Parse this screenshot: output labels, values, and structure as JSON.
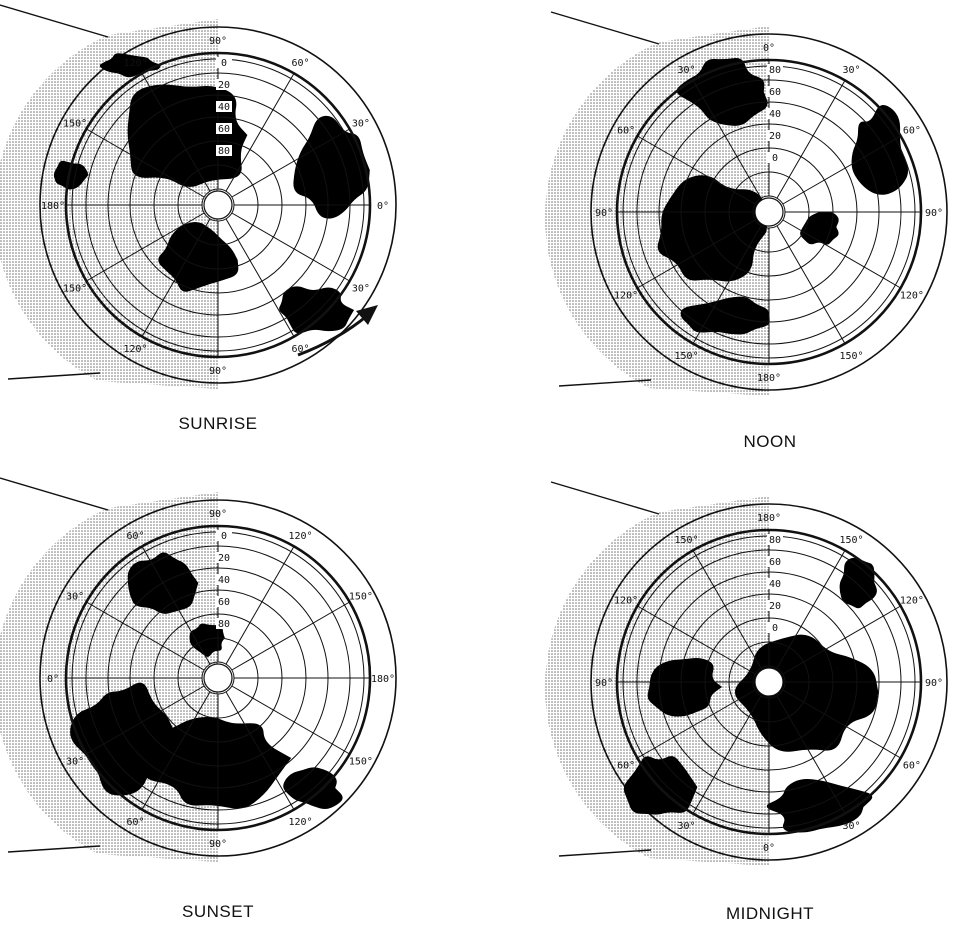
{
  "panels": [
    {
      "id": "sunrise",
      "caption": "SUNRISE",
      "labels": [
        "90°",
        "60°",
        "30°",
        "0°",
        "30°",
        "60°",
        "90°",
        "120°",
        "150°",
        "180°",
        "150°",
        "120°"
      ],
      "lat_labels": [
        "0",
        "20",
        "40",
        "60",
        "80"
      ]
    },
    {
      "id": "noon",
      "caption": "NOON",
      "labels": [
        "0°",
        "30°",
        "60°",
        "90°",
        "120°",
        "150°",
        "180°",
        "150°",
        "120°",
        "90°",
        "60°",
        "30°"
      ],
      "lat_labels": [
        "80",
        "60",
        "40",
        "20",
        "0"
      ]
    },
    {
      "id": "sunset",
      "caption": "SUNSET",
      "labels": [
        "90°",
        "120°",
        "150°",
        "180°",
        "150°",
        "120°",
        "90°",
        "60°",
        "30°",
        "0°",
        "30°",
        "60°"
      ],
      "lat_labels": [
        "0",
        "20",
        "40",
        "60",
        "80"
      ]
    },
    {
      "id": "midnight",
      "caption": "MIDNIGHT",
      "labels": [
        "180°",
        "150°",
        "120°",
        "90°",
        "60°",
        "30°",
        "0°",
        "30°",
        "60°",
        "90°",
        "120°",
        "150°"
      ],
      "lat_labels": [
        "80",
        "60",
        "40",
        "20",
        "0"
      ]
    }
  ],
  "colors": {
    "ink": "#111111",
    "night_shade": "#d4d4d4",
    "land": "#000000",
    "paper": "#ffffff"
  }
}
